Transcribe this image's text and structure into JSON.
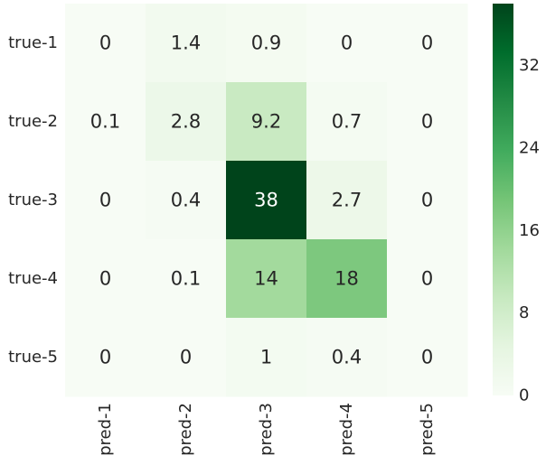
{
  "chart_data": {
    "type": "heatmap",
    "title": "",
    "xlabel": "",
    "ylabel": "",
    "rows": [
      "true-1",
      "true-2",
      "true-3",
      "true-4",
      "true-5"
    ],
    "columns": [
      "pred-1",
      "pred-2",
      "pred-3",
      "pred-4",
      "pred-5"
    ],
    "values": [
      [
        0,
        1.4,
        0.9,
        0,
        0
      ],
      [
        0.1,
        2.8,
        9.2,
        0.7,
        0
      ],
      [
        0,
        0.4,
        38,
        2.7,
        0
      ],
      [
        0,
        0.1,
        14,
        18,
        0
      ],
      [
        0,
        0,
        1,
        0.4,
        0
      ]
    ],
    "value_labels": [
      [
        "0",
        "1.4",
        "0.9",
        "0",
        "0"
      ],
      [
        "0.1",
        "2.8",
        "9.2",
        "0.7",
        "0"
      ],
      [
        "0",
        "0.4",
        "38",
        "2.7",
        "0"
      ],
      [
        "0",
        "0.1",
        "14",
        "18",
        "0"
      ],
      [
        "0",
        "0",
        "1",
        "0.4",
        "0"
      ]
    ],
    "colormap": "Greens",
    "colormap_stops": [
      "#f7fcf5",
      "#e5f5e0",
      "#c7e9c0",
      "#a1d99b",
      "#74c476",
      "#41ab5d",
      "#238b45",
      "#006d2c",
      "#00441b"
    ],
    "text_color_dark": "#262626",
    "text_color_light": "#ffffff",
    "colorbar": {
      "vmin": 0,
      "vmax": 38,
      "ticks": [
        0,
        8,
        16,
        24,
        32
      ],
      "tick_labels": [
        "0",
        "8",
        "16",
        "24",
        "32"
      ]
    }
  }
}
